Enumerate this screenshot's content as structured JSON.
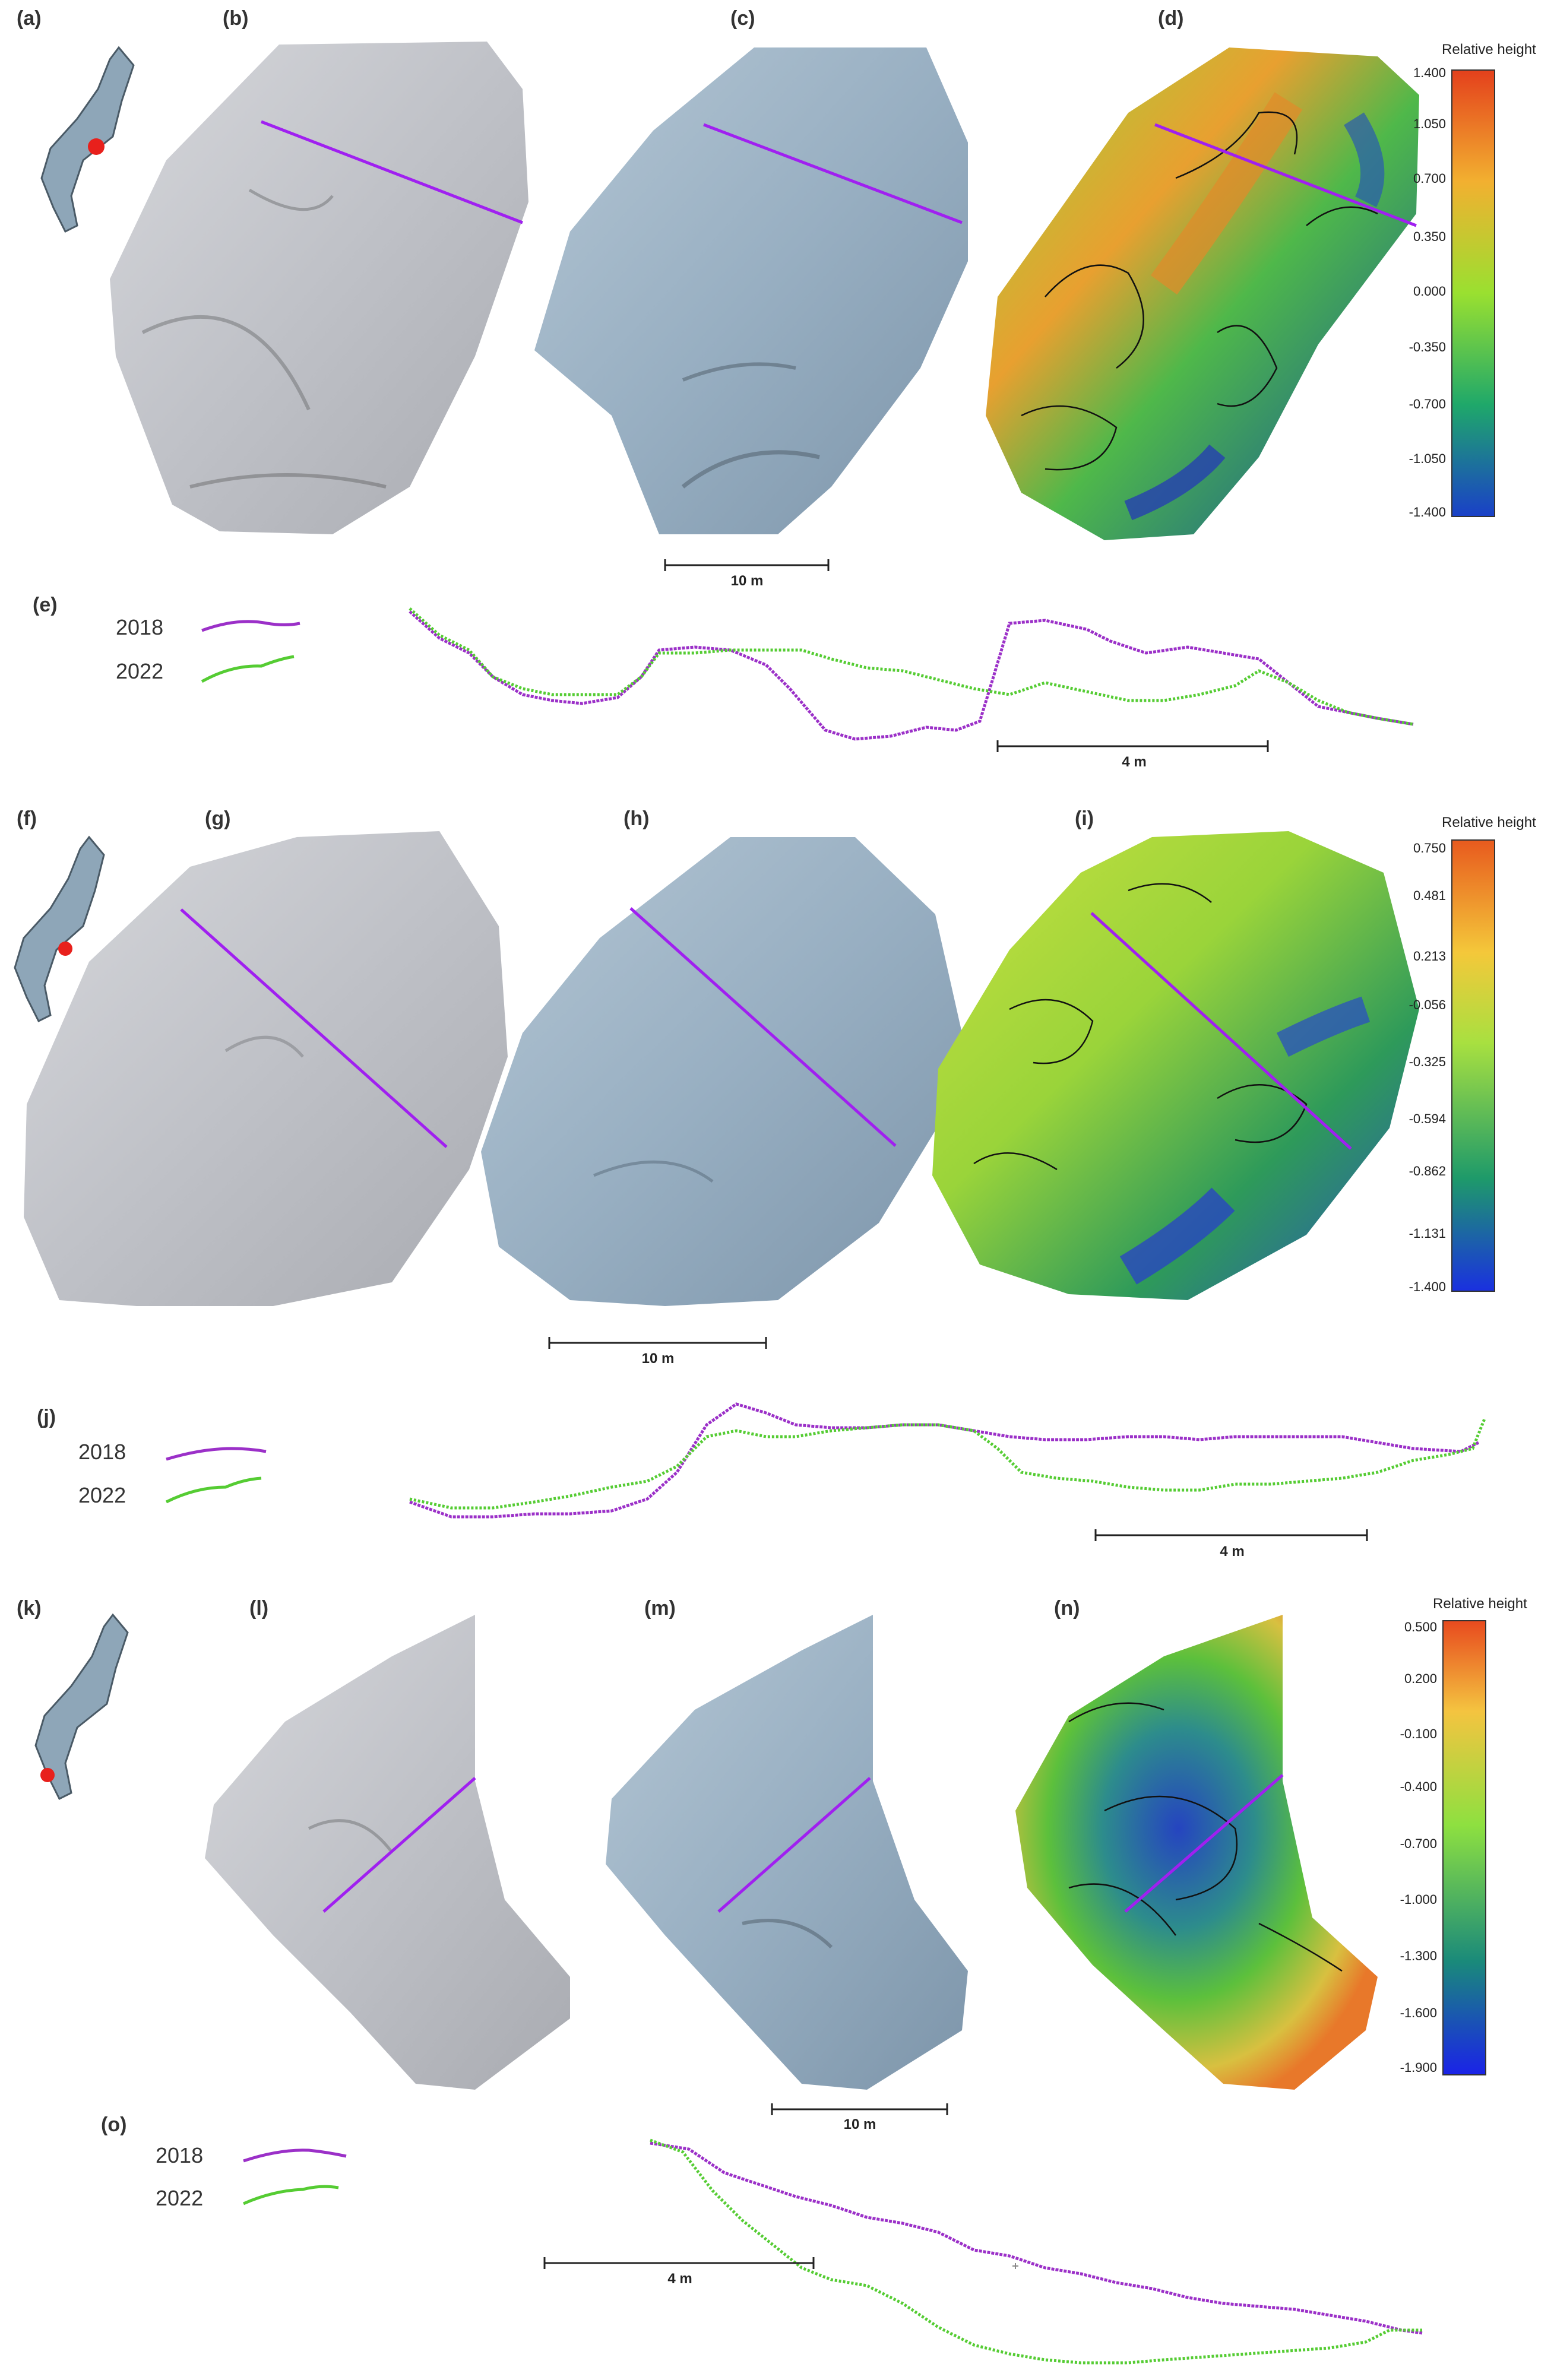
{
  "panel_labels": {
    "a": "(a)",
    "b": "(b)",
    "c": "(c)",
    "d": "(d)",
    "e": "(e)",
    "f": "(f)",
    "g": "(g)",
    "h": "(h)",
    "i": "(i)",
    "j": "(j)",
    "k": "(k)",
    "l": "(l)",
    "m": "(m)",
    "n": "(n)",
    "o": "(o)"
  },
  "legend": {
    "year_2018": "2018",
    "year_2022": "2022",
    "color_2018": "#9b30c8",
    "color_2022": "#55cc33"
  },
  "colorbars": [
    {
      "title": "Relative height",
      "ticks": [
        "1.400",
        "1.050",
        "0.700",
        "0.350",
        "0.000",
        "-0.350",
        "-0.700",
        "-1.050",
        "-1.400"
      ]
    },
    {
      "title": "Relative height",
      "ticks": [
        "0.750",
        "0.481",
        "0.213",
        "-0.056",
        "-0.325",
        "-0.594",
        "-0.862",
        "-1.131",
        "-1.400"
      ]
    },
    {
      "title": "Relative height",
      "ticks": [
        "0.500",
        "0.200",
        "-0.100",
        "-0.400",
        "-0.700",
        "-1.000",
        "-1.300",
        "-1.600",
        "-1.900"
      ]
    }
  ],
  "scalebars": {
    "ortho_1": "10 m",
    "profile_1": "4 m",
    "ortho_2": "10 m",
    "profile_2": "4 m",
    "ortho_3": "10 m",
    "profile_3": "4 m"
  },
  "colors": {
    "ortho_2018": "#c4c6cc",
    "ortho_2022": "#9fb4c6",
    "profile_line": "#a020f0",
    "dem_high": "#e2561e",
    "dem_mid": "#8fd63a",
    "dem_low": "#1c3fb8"
  }
}
